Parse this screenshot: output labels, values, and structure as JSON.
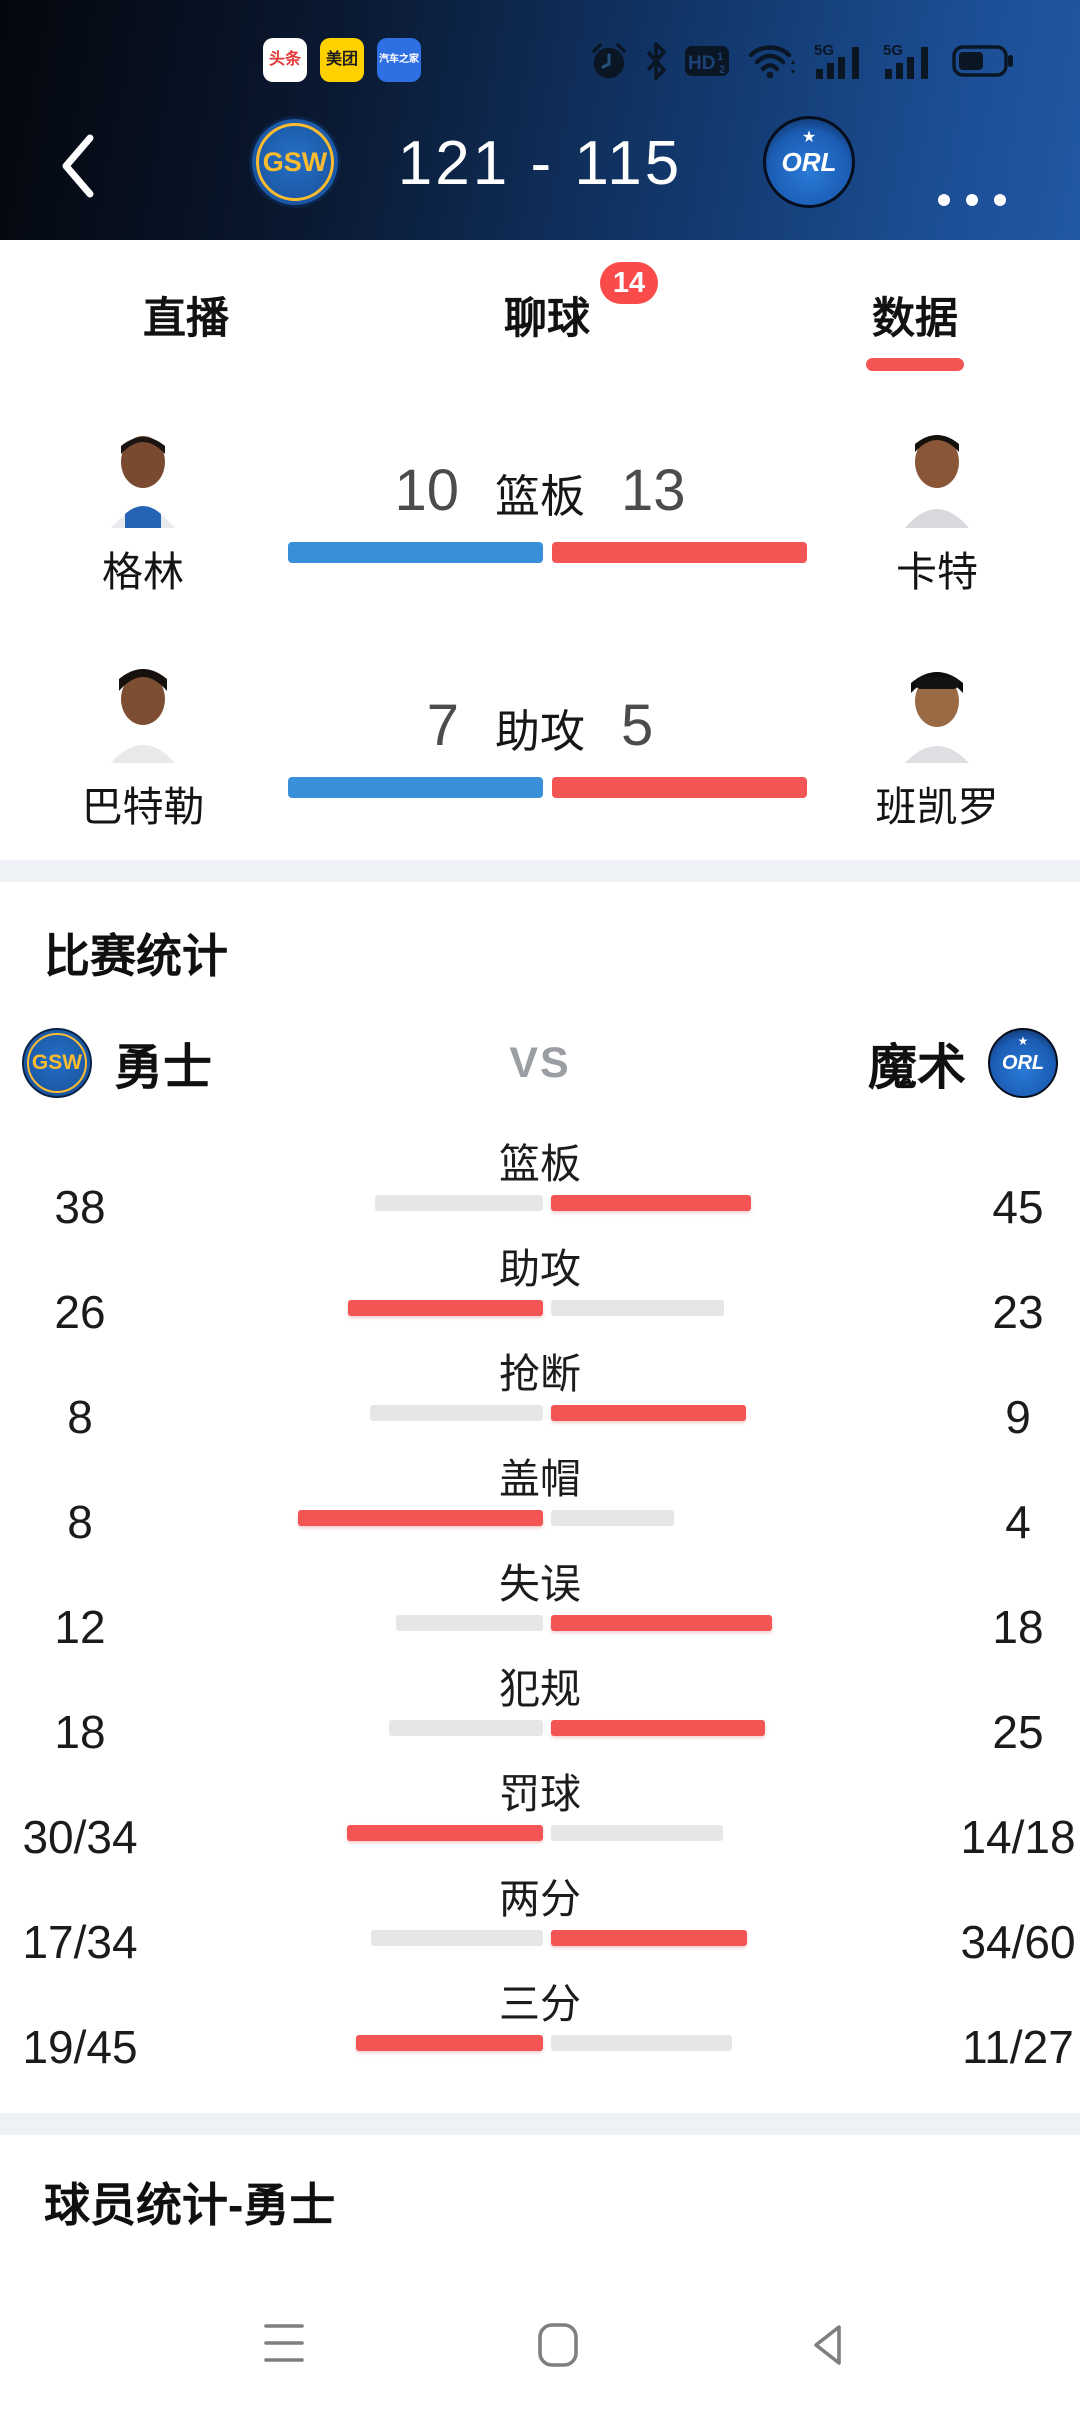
{
  "status_bar": {
    "app_badges": [
      {
        "label": "头条",
        "bg": "#ffffff",
        "fg": "#e03a3a"
      },
      {
        "label": "美团",
        "bg": "#ffd100",
        "fg": "#1d1d1d"
      },
      {
        "label": "汽车之家",
        "bg": "#2f6fe4",
        "fg": "#ffffff"
      }
    ],
    "system_icons": [
      "alarm-icon",
      "bluetooth-icon",
      "hd-volte-icon",
      "wifi-icon",
      "signal-5g-icon",
      "signal-5g-icon",
      "battery-icon"
    ],
    "hd_label": "HD",
    "network_label": "5G"
  },
  "header": {
    "home_abbr": "GSW",
    "away_abbr": "ORL",
    "away_star": "★",
    "score": "121 - 115"
  },
  "tabs": [
    {
      "label": "直播",
      "active": false
    },
    {
      "label": "聊球",
      "active": false,
      "badge": "14"
    },
    {
      "label": "数据",
      "active": true
    }
  ],
  "duels": [
    {
      "stat": "篮板",
      "left_name": "格林",
      "left_value": "10",
      "right_name": "卡特",
      "right_value": "13"
    },
    {
      "stat": "助攻",
      "left_name": "巴特勒",
      "left_value": "7",
      "right_name": "班凯罗",
      "right_value": "5"
    }
  ],
  "team_stats": {
    "title": "比赛统计",
    "home": {
      "name": "勇士",
      "abbr": "GSW"
    },
    "away": {
      "name": "魔术",
      "abbr": "ORL"
    },
    "vs": "VS",
    "rows": [
      {
        "label": "篮板",
        "left": "38",
        "right": "45",
        "left_w": 168,
        "right_w": 200,
        "winner": "right"
      },
      {
        "label": "助攻",
        "left": "26",
        "right": "23",
        "left_w": 195,
        "right_w": 173,
        "winner": "left"
      },
      {
        "label": "抢断",
        "left": "8",
        "right": "9",
        "left_w": 173,
        "right_w": 195,
        "winner": "right"
      },
      {
        "label": "盖帽",
        "left": "8",
        "right": "4",
        "left_w": 245,
        "right_w": 123,
        "winner": "left"
      },
      {
        "label": "失误",
        "left": "12",
        "right": "18",
        "left_w": 147,
        "right_w": 221,
        "winner": "right"
      },
      {
        "label": "犯规",
        "left": "18",
        "right": "25",
        "left_w": 154,
        "right_w": 214,
        "winner": "right"
      },
      {
        "label": "罚球",
        "left": "30/34",
        "right": "14/18",
        "left_w": 196,
        "right_w": 172,
        "winner": "left"
      },
      {
        "label": "两分",
        "left": "17/34",
        "right": "34/60",
        "left_w": 172,
        "right_w": 196,
        "winner": "right"
      },
      {
        "label": "三分",
        "left": "19/45",
        "right": "11/27",
        "left_w": 187,
        "right_w": 181,
        "winner": "left"
      }
    ]
  },
  "player_stats": {
    "title": "球员统计-勇士"
  },
  "nav_bar": {
    "items": [
      "menu-icon",
      "home-icon",
      "back-icon"
    ]
  },
  "colors": {
    "red": "#F35454",
    "blue": "#3A8FD9",
    "bar_gray": "#E6E6E6",
    "badge_red": "#FA4A4A"
  }
}
